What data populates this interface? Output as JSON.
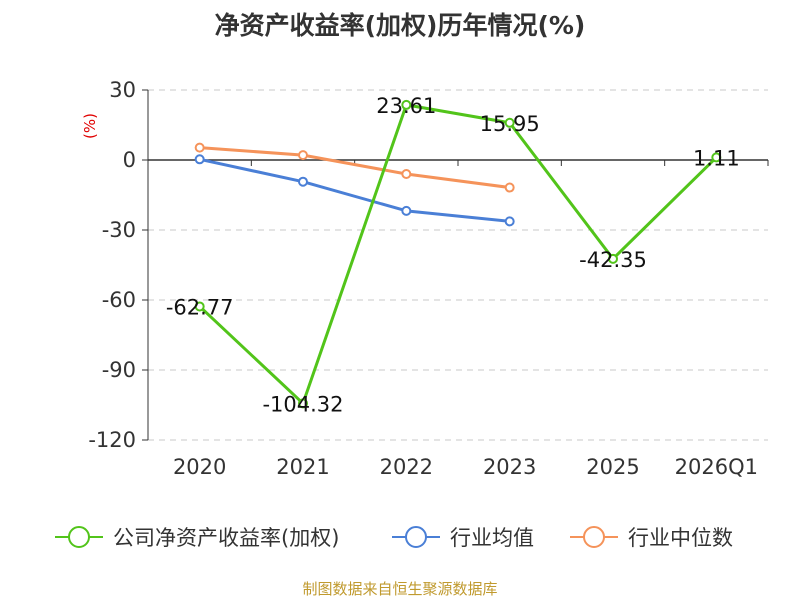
{
  "chart_data": {
    "type": "line",
    "title": "净资产收益率(加权)历年情况(%)",
    "ylabel": "(%)",
    "ylim": [
      -120,
      30
    ],
    "yticks": [
      30,
      0,
      -30,
      -60,
      -90,
      -120
    ],
    "categories": [
      "2020",
      "2021",
      "2022",
      "2023",
      "2025",
      "2026Q1"
    ],
    "grid": true,
    "legend_position": "bottom",
    "series": [
      {
        "name": "公司净资产收益率(加权)",
        "color": "#52c41a",
        "values": [
          -62.77,
          -104.32,
          23.61,
          15.95,
          -42.35,
          1.11
        ],
        "labels": [
          "-62.77",
          "-104.32",
          "23.61",
          "15.95",
          "-42.35",
          "1.11"
        ]
      },
      {
        "name": "行业均值",
        "color": "#4a7fd6",
        "values": [
          0.3,
          -9.3,
          -21.8,
          -26.3,
          null,
          null
        ]
      },
      {
        "name": "行业中位数",
        "color": "#f5935a",
        "values": [
          5.3,
          2.1,
          -6.0,
          -11.8,
          null,
          null
        ]
      }
    ],
    "source": "制图数据来自恒生聚源数据库"
  }
}
